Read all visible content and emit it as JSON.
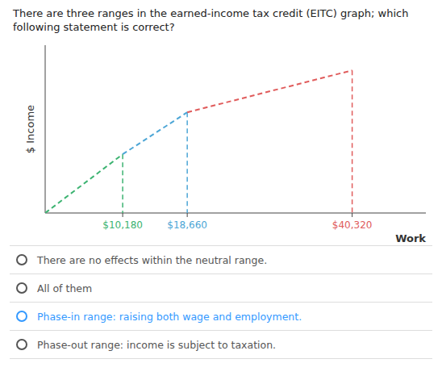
{
  "chart_data": {
    "type": "line",
    "title": "There are three ranges in the earned-income tax credit (EITC) graph; which following statement is correct?",
    "x_label": "Work",
    "y_label": "$ Income",
    "x": [
      0,
      10180,
      18660,
      40320
    ],
    "series": [
      {
        "color": "#3cb371",
        "line_style": "dashed",
        "values": [
          0.0,
          3.5,
          null,
          null
        ]
      },
      {
        "color": "#4da6d6",
        "line_style": "dashed",
        "values": [
          null,
          3.5,
          6.0,
          null
        ]
      },
      {
        "color": "#e05c5c",
        "line_style": "dashed",
        "values": [
          null,
          null,
          6.0,
          8.5
        ]
      }
    ],
    "xlim": [
      0,
      50000
    ],
    "ylim": [
      0,
      10
    ],
    "xticks": [
      {
        "value": 10180,
        "label": "$10,180"
      },
      {
        "value": 18660,
        "label": "$18,660"
      },
      {
        "value": 40320,
        "label": "$40,320"
      }
    ],
    "yticks": [],
    "tick_labels": "x",
    "grid": false,
    "annotations": [
      {
        "text": "There are no effects within the neutral range.",
        "color": "#555555"
      },
      {
        "text": "All of them",
        "color": "#555555"
      },
      {
        "text": "Phase-in range: raising both wage and employment.",
        "color": "#3399ff"
      },
      {
        "text": "Phase-out range: income is subject to taxation.",
        "color": "#555555"
      }
    ]
  }
}
